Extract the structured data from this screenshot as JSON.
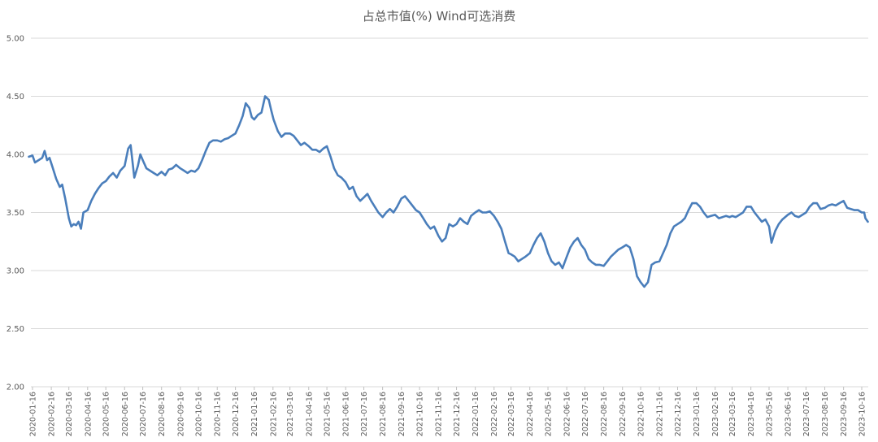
{
  "chart_data": {
    "type": "line",
    "title": "占总市值(%) Wind可选消费",
    "xlabel": "",
    "ylabel": "",
    "ylim": [
      2.0,
      5.0
    ],
    "y_ticks": [
      "2.00",
      "2.50",
      "3.00",
      "3.50",
      "4.00",
      "4.50",
      "5.00"
    ],
    "x_tick_labels": [
      "2020-01-16",
      "2020-02-16",
      "2020-03-16",
      "2020-04-16",
      "2020-05-16",
      "2020-06-16",
      "2020-07-16",
      "2020-08-16",
      "2020-09-16",
      "2020-10-16",
      "2020-11-16",
      "2020-12-16",
      "2021-01-16",
      "2021-02-16",
      "2021-03-16",
      "2021-04-16",
      "2021-05-16",
      "2021-06-16",
      "2021-07-16",
      "2021-08-16",
      "2021-09-16",
      "2021-10-16",
      "2021-11-16",
      "2021-12-16",
      "2022-01-16",
      "2022-02-16",
      "2022-03-16",
      "2022-04-16",
      "2022-05-16",
      "2022-06-16",
      "2022-07-16",
      "2022-08-16",
      "2022-09-16",
      "2022-10-16",
      "2022-11-16",
      "2022-12-16",
      "2023-01-16",
      "2023-02-16",
      "2023-03-16",
      "2023-04-16",
      "2023-05-16",
      "2023-06-16",
      "2023-07-16",
      "2023-08-16",
      "2023-09-16",
      "2023-10-16"
    ],
    "grid": "horizontal",
    "line_color": "#4a7ebb",
    "series": [
      {
        "points": [
          [
            "2020-01-10",
            3.98
          ],
          [
            "2020-01-16",
            3.99
          ],
          [
            "2020-01-20",
            3.93
          ],
          [
            "2020-02-01",
            3.97
          ],
          [
            "2020-02-05",
            4.03
          ],
          [
            "2020-02-09",
            3.95
          ],
          [
            "2020-02-13",
            3.97
          ],
          [
            "2020-02-18",
            3.89
          ],
          [
            "2020-02-24",
            3.79
          ],
          [
            "2020-03-01",
            3.72
          ],
          [
            "2020-03-05",
            3.74
          ],
          [
            "2020-03-10",
            3.62
          ],
          [
            "2020-03-16",
            3.45
          ],
          [
            "2020-03-20",
            3.38
          ],
          [
            "2020-03-24",
            3.4
          ],
          [
            "2020-03-28",
            3.39
          ],
          [
            "2020-04-01",
            3.42
          ],
          [
            "2020-04-05",
            3.36
          ],
          [
            "2020-04-09",
            3.5
          ],
          [
            "2020-04-16",
            3.52
          ],
          [
            "2020-04-22",
            3.6
          ],
          [
            "2020-04-28",
            3.66
          ],
          [
            "2020-05-04",
            3.71
          ],
          [
            "2020-05-10",
            3.75
          ],
          [
            "2020-05-16",
            3.77
          ],
          [
            "2020-05-22",
            3.81
          ],
          [
            "2020-05-28",
            3.84
          ],
          [
            "2020-06-03",
            3.8
          ],
          [
            "2020-06-09",
            3.86
          ],
          [
            "2020-06-16",
            3.9
          ],
          [
            "2020-06-22",
            4.05
          ],
          [
            "2020-06-26",
            4.08
          ],
          [
            "2020-07-02",
            3.8
          ],
          [
            "2020-07-08",
            3.9
          ],
          [
            "2020-07-12",
            4.0
          ],
          [
            "2020-07-16",
            3.95
          ],
          [
            "2020-07-22",
            3.88
          ],
          [
            "2020-07-28",
            3.86
          ],
          [
            "2020-08-03",
            3.84
          ],
          [
            "2020-08-09",
            3.82
          ],
          [
            "2020-08-16",
            3.85
          ],
          [
            "2020-08-22",
            3.82
          ],
          [
            "2020-08-28",
            3.87
          ],
          [
            "2020-09-03",
            3.88
          ],
          [
            "2020-09-09",
            3.91
          ],
          [
            "2020-09-16",
            3.88
          ],
          [
            "2020-09-22",
            3.86
          ],
          [
            "2020-09-28",
            3.84
          ],
          [
            "2020-10-04",
            3.86
          ],
          [
            "2020-10-10",
            3.85
          ],
          [
            "2020-10-16",
            3.88
          ],
          [
            "2020-10-22",
            3.95
          ],
          [
            "2020-10-28",
            4.03
          ],
          [
            "2020-11-03",
            4.1
          ],
          [
            "2020-11-09",
            4.12
          ],
          [
            "2020-11-16",
            4.12
          ],
          [
            "2020-11-22",
            4.11
          ],
          [
            "2020-11-28",
            4.13
          ],
          [
            "2020-12-04",
            4.14
          ],
          [
            "2020-12-10",
            4.16
          ],
          [
            "2020-12-16",
            4.18
          ],
          [
            "2020-12-22",
            4.25
          ],
          [
            "2020-12-28",
            4.33
          ],
          [
            "2021-01-02",
            4.44
          ],
          [
            "2021-01-08",
            4.4
          ],
          [
            "2021-01-12",
            4.32
          ],
          [
            "2021-01-16",
            4.3
          ],
          [
            "2021-01-22",
            4.34
          ],
          [
            "2021-01-28",
            4.36
          ],
          [
            "2021-02-03",
            4.5
          ],
          [
            "2021-02-09",
            4.47
          ],
          [
            "2021-02-13",
            4.38
          ],
          [
            "2021-02-17",
            4.3
          ],
          [
            "2021-02-24",
            4.2
          ],
          [
            "2021-03-02",
            4.15
          ],
          [
            "2021-03-08",
            4.18
          ],
          [
            "2021-03-16",
            4.18
          ],
          [
            "2021-03-22",
            4.16
          ],
          [
            "2021-03-28",
            4.12
          ],
          [
            "2021-04-03",
            4.08
          ],
          [
            "2021-04-09",
            4.1
          ],
          [
            "2021-04-16",
            4.07
          ],
          [
            "2021-04-22",
            4.04
          ],
          [
            "2021-04-28",
            4.04
          ],
          [
            "2021-05-04",
            4.02
          ],
          [
            "2021-05-10",
            4.05
          ],
          [
            "2021-05-16",
            4.07
          ],
          [
            "2021-05-22",
            3.98
          ],
          [
            "2021-05-28",
            3.88
          ],
          [
            "2021-06-03",
            3.82
          ],
          [
            "2021-06-09",
            3.8
          ],
          [
            "2021-06-16",
            3.76
          ],
          [
            "2021-06-22",
            3.7
          ],
          [
            "2021-06-28",
            3.72
          ],
          [
            "2021-07-04",
            3.64
          ],
          [
            "2021-07-10",
            3.6
          ],
          [
            "2021-07-16",
            3.63
          ],
          [
            "2021-07-22",
            3.66
          ],
          [
            "2021-07-28",
            3.6
          ],
          [
            "2021-08-03",
            3.55
          ],
          [
            "2021-08-09",
            3.5
          ],
          [
            "2021-08-16",
            3.46
          ],
          [
            "2021-08-22",
            3.5
          ],
          [
            "2021-08-28",
            3.53
          ],
          [
            "2021-09-03",
            3.5
          ],
          [
            "2021-09-09",
            3.55
          ],
          [
            "2021-09-16",
            3.62
          ],
          [
            "2021-09-22",
            3.64
          ],
          [
            "2021-09-28",
            3.6
          ],
          [
            "2021-10-04",
            3.56
          ],
          [
            "2021-10-10",
            3.52
          ],
          [
            "2021-10-16",
            3.5
          ],
          [
            "2021-10-22",
            3.45
          ],
          [
            "2021-10-28",
            3.4
          ],
          [
            "2021-11-03",
            3.36
          ],
          [
            "2021-11-09",
            3.38
          ],
          [
            "2021-11-16",
            3.3
          ],
          [
            "2021-11-22",
            3.25
          ],
          [
            "2021-11-28",
            3.28
          ],
          [
            "2021-12-04",
            3.4
          ],
          [
            "2021-12-10",
            3.38
          ],
          [
            "2021-12-16",
            3.4
          ],
          [
            "2021-12-22",
            3.45
          ],
          [
            "2021-12-28",
            3.42
          ],
          [
            "2022-01-03",
            3.4
          ],
          [
            "2022-01-09",
            3.47
          ],
          [
            "2022-01-16",
            3.5
          ],
          [
            "2022-01-22",
            3.52
          ],
          [
            "2022-01-28",
            3.5
          ],
          [
            "2022-02-03",
            3.5
          ],
          [
            "2022-02-09",
            3.51
          ],
          [
            "2022-02-16",
            3.47
          ],
          [
            "2022-02-22",
            3.42
          ],
          [
            "2022-02-28",
            3.36
          ],
          [
            "2022-03-06",
            3.25
          ],
          [
            "2022-03-12",
            3.15
          ],
          [
            "2022-03-16",
            3.14
          ],
          [
            "2022-03-22",
            3.12
          ],
          [
            "2022-03-28",
            3.08
          ],
          [
            "2022-04-03",
            3.1
          ],
          [
            "2022-04-09",
            3.12
          ],
          [
            "2022-04-16",
            3.15
          ],
          [
            "2022-04-22",
            3.22
          ],
          [
            "2022-04-28",
            3.28
          ],
          [
            "2022-05-04",
            3.32
          ],
          [
            "2022-05-10",
            3.25
          ],
          [
            "2022-05-16",
            3.15
          ],
          [
            "2022-05-22",
            3.08
          ],
          [
            "2022-05-28",
            3.05
          ],
          [
            "2022-06-03",
            3.07
          ],
          [
            "2022-06-09",
            3.02
          ],
          [
            "2022-06-16",
            3.12
          ],
          [
            "2022-06-22",
            3.2
          ],
          [
            "2022-06-28",
            3.25
          ],
          [
            "2022-07-04",
            3.28
          ],
          [
            "2022-07-10",
            3.22
          ],
          [
            "2022-07-16",
            3.18
          ],
          [
            "2022-07-22",
            3.1
          ],
          [
            "2022-07-28",
            3.07
          ],
          [
            "2022-08-03",
            3.05
          ],
          [
            "2022-08-09",
            3.05
          ],
          [
            "2022-08-16",
            3.04
          ],
          [
            "2022-08-22",
            3.08
          ],
          [
            "2022-08-28",
            3.12
          ],
          [
            "2022-09-03",
            3.15
          ],
          [
            "2022-09-09",
            3.18
          ],
          [
            "2022-09-16",
            3.2
          ],
          [
            "2022-09-22",
            3.22
          ],
          [
            "2022-09-28",
            3.2
          ],
          [
            "2022-10-04",
            3.1
          ],
          [
            "2022-10-10",
            2.95
          ],
          [
            "2022-10-16",
            2.9
          ],
          [
            "2022-10-22",
            2.86
          ],
          [
            "2022-10-28",
            2.9
          ],
          [
            "2022-11-03",
            3.05
          ],
          [
            "2022-11-09",
            3.07
          ],
          [
            "2022-11-16",
            3.08
          ],
          [
            "2022-11-22",
            3.15
          ],
          [
            "2022-11-28",
            3.22
          ],
          [
            "2022-12-04",
            3.32
          ],
          [
            "2022-12-10",
            3.38
          ],
          [
            "2022-12-16",
            3.4
          ],
          [
            "2022-12-22",
            3.42
          ],
          [
            "2022-12-28",
            3.45
          ],
          [
            "2023-01-03",
            3.52
          ],
          [
            "2023-01-09",
            3.58
          ],
          [
            "2023-01-16",
            3.58
          ],
          [
            "2023-01-22",
            3.55
          ],
          [
            "2023-01-28",
            3.5
          ],
          [
            "2023-02-03",
            3.46
          ],
          [
            "2023-02-09",
            3.47
          ],
          [
            "2023-02-16",
            3.48
          ],
          [
            "2023-02-22",
            3.45
          ],
          [
            "2023-02-28",
            3.46
          ],
          [
            "2023-03-06",
            3.47
          ],
          [
            "2023-03-12",
            3.46
          ],
          [
            "2023-03-16",
            3.47
          ],
          [
            "2023-03-22",
            3.46
          ],
          [
            "2023-03-28",
            3.48
          ],
          [
            "2023-04-03",
            3.5
          ],
          [
            "2023-04-09",
            3.55
          ],
          [
            "2023-04-16",
            3.55
          ],
          [
            "2023-04-22",
            3.5
          ],
          [
            "2023-04-28",
            3.46
          ],
          [
            "2023-05-04",
            3.42
          ],
          [
            "2023-05-10",
            3.44
          ],
          [
            "2023-05-16",
            3.38
          ],
          [
            "2023-05-20",
            3.24
          ],
          [
            "2023-05-26",
            3.34
          ],
          [
            "2023-06-01",
            3.4
          ],
          [
            "2023-06-07",
            3.44
          ],
          [
            "2023-06-16",
            3.48
          ],
          [
            "2023-06-22",
            3.5
          ],
          [
            "2023-06-28",
            3.47
          ],
          [
            "2023-07-04",
            3.46
          ],
          [
            "2023-07-10",
            3.48
          ],
          [
            "2023-07-16",
            3.5
          ],
          [
            "2023-07-22",
            3.55
          ],
          [
            "2023-07-28",
            3.58
          ],
          [
            "2023-08-03",
            3.58
          ],
          [
            "2023-08-09",
            3.53
          ],
          [
            "2023-08-16",
            3.54
          ],
          [
            "2023-08-22",
            3.56
          ],
          [
            "2023-08-28",
            3.57
          ],
          [
            "2023-09-03",
            3.56
          ],
          [
            "2023-09-09",
            3.58
          ],
          [
            "2023-09-16",
            3.6
          ],
          [
            "2023-09-22",
            3.54
          ],
          [
            "2023-09-28",
            3.53
          ],
          [
            "2023-10-04",
            3.52
          ],
          [
            "2023-10-10",
            3.52
          ],
          [
            "2023-10-16",
            3.5
          ],
          [
            "2023-10-20",
            3.5
          ],
          [
            "2023-10-22",
            3.45
          ],
          [
            "2023-10-26",
            3.42
          ]
        ]
      }
    ]
  }
}
